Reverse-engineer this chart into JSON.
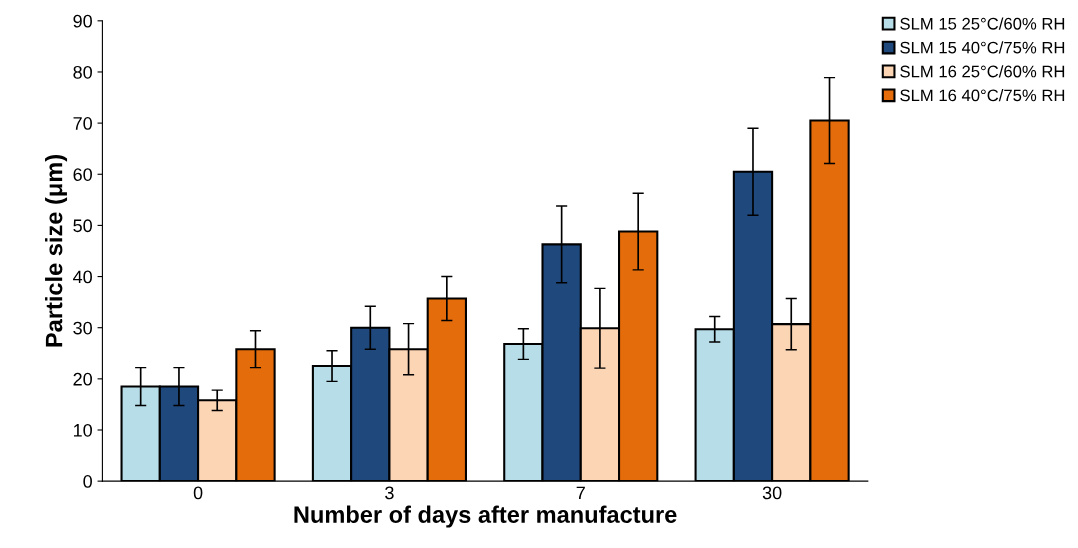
{
  "chart_data": {
    "type": "bar",
    "xlabel": "Number of days after manufacture",
    "ylabel": "Particle size (μm)",
    "categories": [
      "0",
      "3",
      "7",
      "30"
    ],
    "series": [
      {
        "name": "SLM 15 25°C/60% RH",
        "color": "#b7dde8",
        "values": [
          18.5,
          22.5,
          26.8,
          29.7
        ],
        "errors": [
          3.7,
          3,
          3,
          2.5
        ]
      },
      {
        "name": "SLM 15 40°C/75% RH",
        "color": "#1f497d",
        "values": [
          18.5,
          30,
          46.3,
          60.5
        ],
        "errors": [
          3.7,
          4.2,
          7.5,
          8.5
        ]
      },
      {
        "name": "SLM 16 25°C/60% RH",
        "color": "#fcd5b5",
        "values": [
          15.8,
          25.8,
          29.9,
          30.7
        ],
        "errors": [
          2,
          5,
          7.8,
          5
        ]
      },
      {
        "name": "SLM 16 40°C/75% RH",
        "color": "#e46c0a",
        "values": [
          25.8,
          35.7,
          48.8,
          70.5
        ],
        "errors": [
          3.6,
          4.3,
          7.5,
          8.4
        ]
      }
    ],
    "ylim": [
      0,
      90
    ],
    "yticks": [
      0,
      10,
      20,
      30,
      40,
      50,
      60,
      70,
      80,
      90
    ],
    "grid": false,
    "legend": "top right"
  }
}
